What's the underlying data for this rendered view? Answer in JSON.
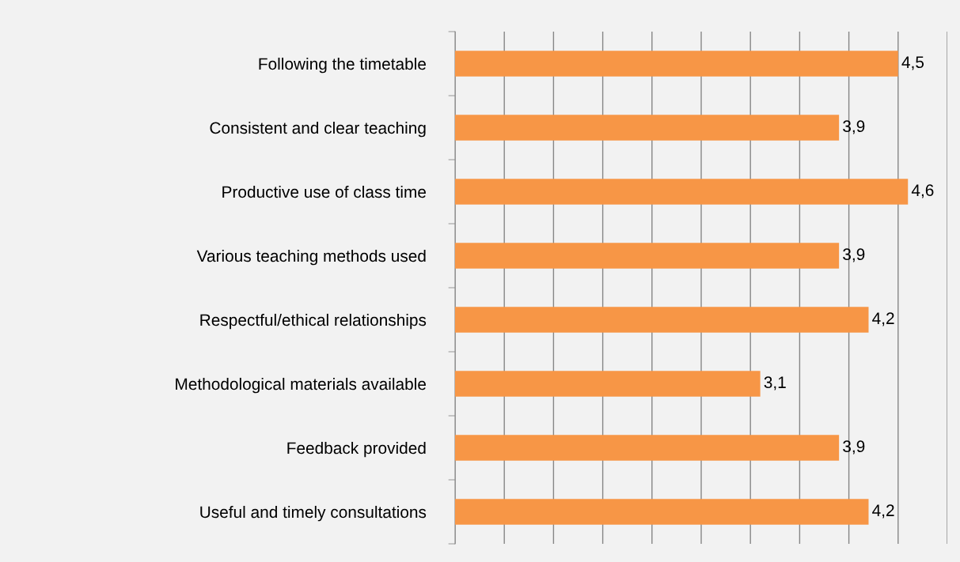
{
  "chart_data": {
    "type": "bar",
    "orientation": "horizontal",
    "categories": [
      "Following the timetable",
      "Consistent and clear teaching",
      "Productive use of class time",
      "Various teaching methods used",
      "Respectful/ethical relationships",
      "Methodological materials available",
      "Feedback provided",
      "Useful and timely consultations"
    ],
    "values": [
      4.5,
      3.9,
      4.6,
      3.9,
      4.2,
      3.1,
      3.9,
      4.2
    ],
    "value_labels": [
      "4,5",
      "3,9",
      "4,6",
      "3,9",
      "4,2",
      "3,1",
      "3,9",
      "4,2"
    ],
    "color": "#f79646",
    "xlim": [
      0,
      5
    ],
    "xticks": [
      {
        "value": 0,
        "label": null
      },
      {
        "value": 0.5,
        "label": null
      },
      {
        "value": 1,
        "label": null
      },
      {
        "value": 1.5,
        "label": null
      },
      {
        "value": 2,
        "label": null
      },
      {
        "value": 2.5,
        "label": null
      },
      {
        "value": 3,
        "label": null
      },
      {
        "value": 3.5,
        "label": null
      },
      {
        "value": 4,
        "label": null
      },
      {
        "value": 4.5,
        "label": null
      },
      {
        "value": 5,
        "label": null
      }
    ],
    "grid": "x",
    "tick_labels": "y"
  }
}
